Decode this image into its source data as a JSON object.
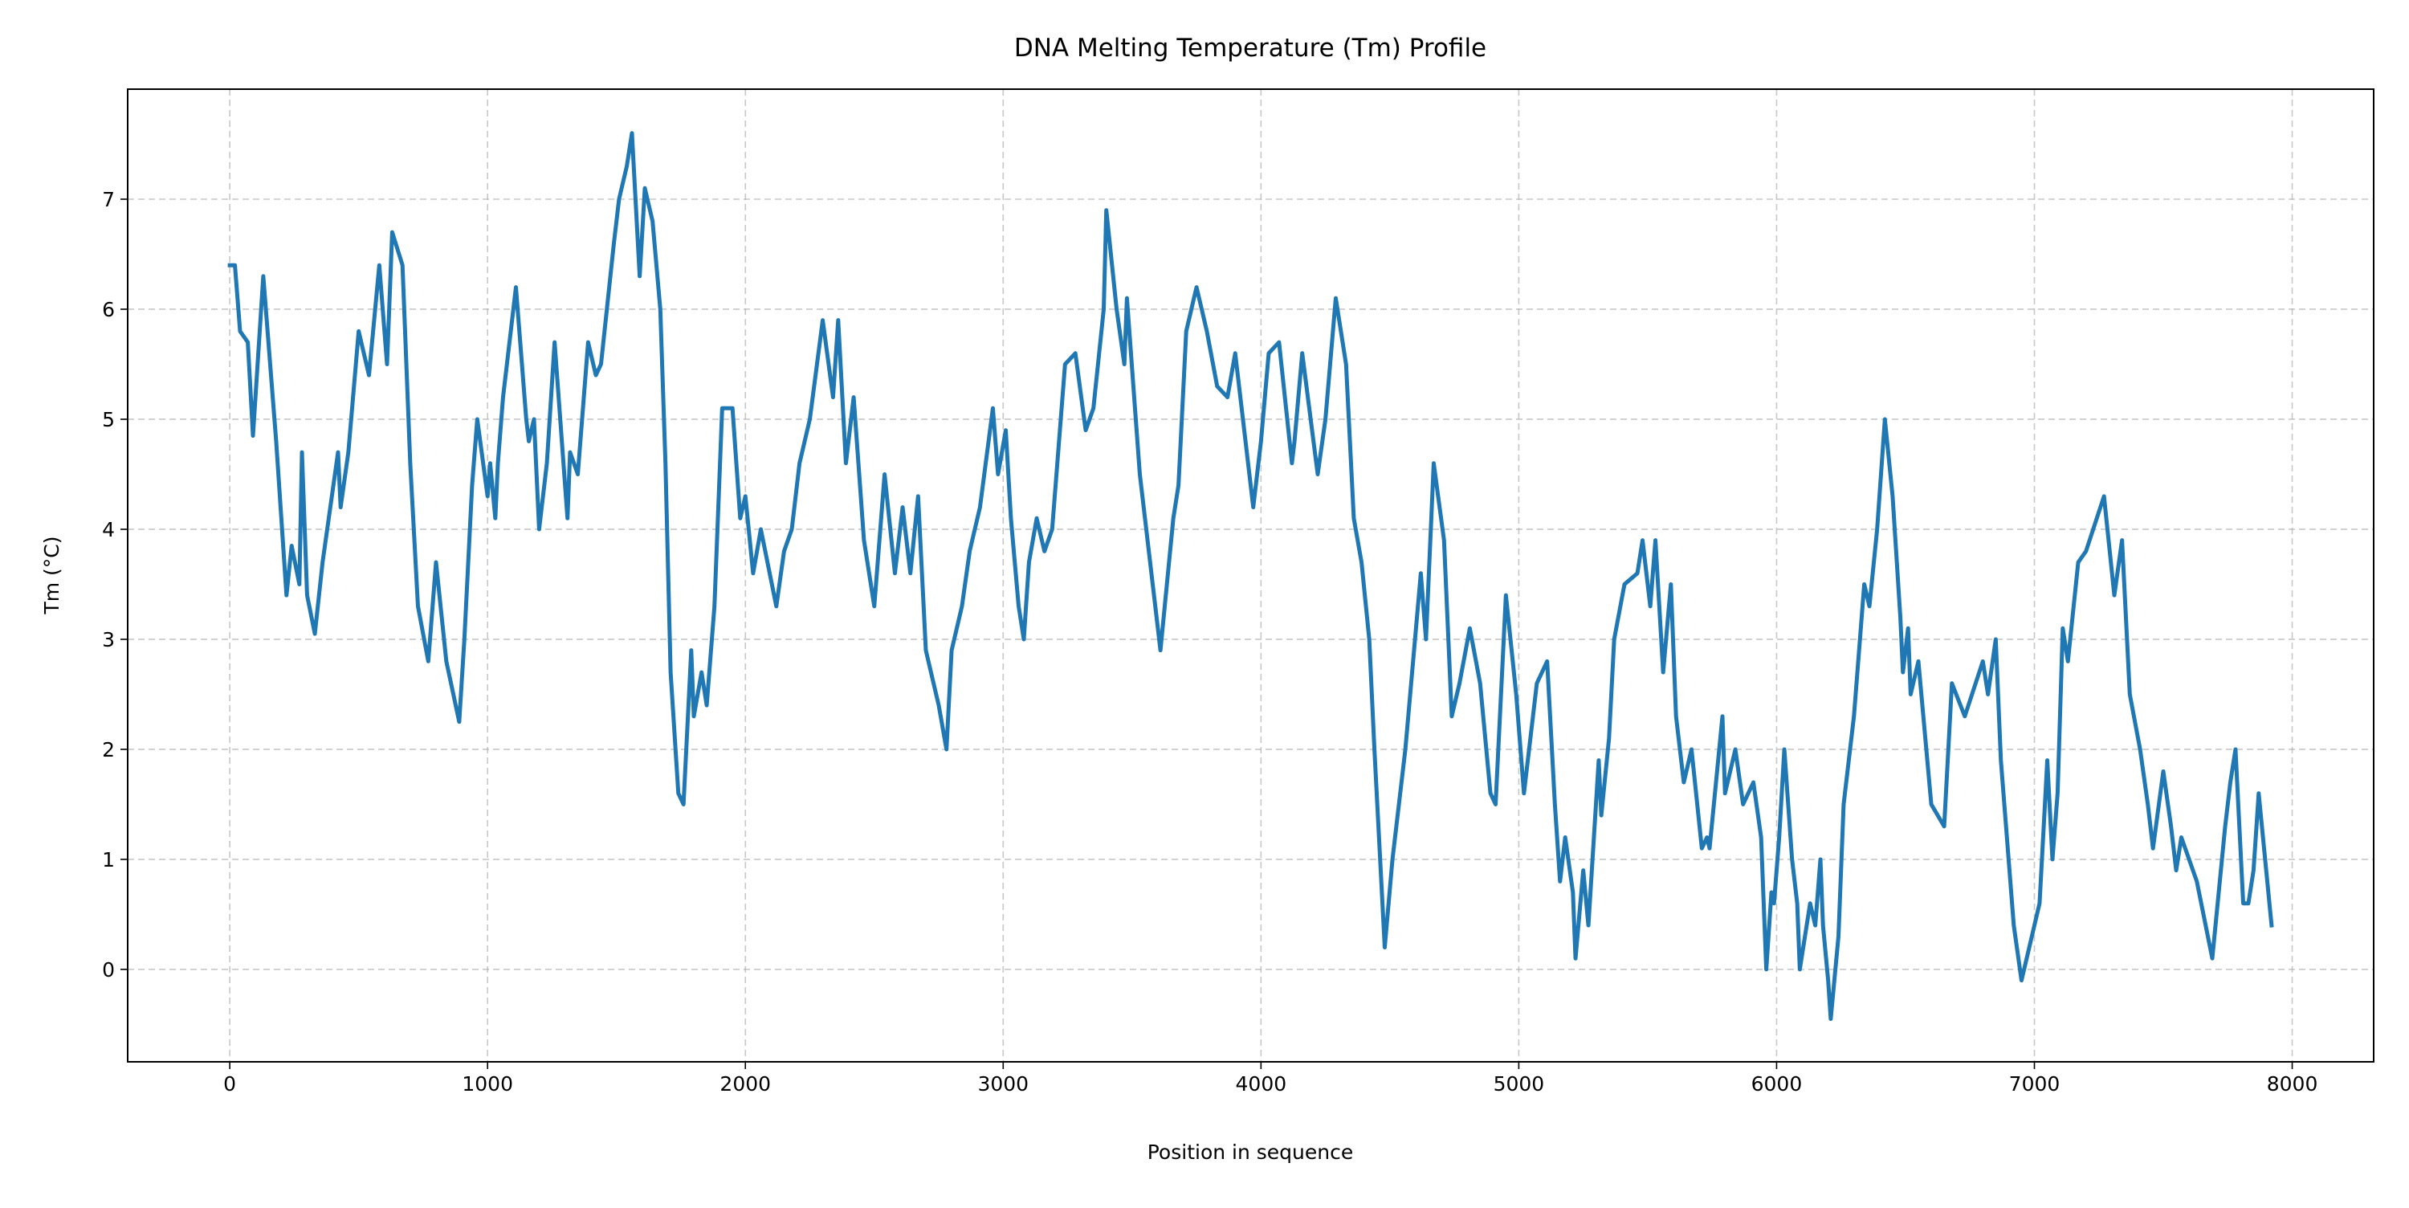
{
  "chart_data": {
    "type": "line",
    "title": "DNA Melting Temperature (Tm) Profile",
    "x_label": "Position in sequence",
    "y_label": "Tm (°C)",
    "color": "#1f77b4",
    "grid": true,
    "xlim": [
      -396,
      8316
    ],
    "ylim": [
      -0.84,
      8.0
    ],
    "xticks": [
      0,
      1000,
      2000,
      3000,
      4000,
      5000,
      6000,
      7000,
      8000
    ],
    "yticks": [
      0,
      1,
      2,
      3,
      4,
      5,
      6,
      7
    ],
    "x": [
      0,
      20,
      40,
      70,
      90,
      130,
      180,
      220,
      240,
      270,
      280,
      300,
      330,
      360,
      420,
      430,
      460,
      500,
      540,
      580,
      610,
      630,
      670,
      700,
      730,
      770,
      800,
      840,
      890,
      910,
      940,
      960,
      1000,
      1010,
      1030,
      1040,
      1060,
      1110,
      1150,
      1160,
      1180,
      1200,
      1230,
      1260,
      1310,
      1320,
      1350,
      1390,
      1420,
      1440,
      1490,
      1510,
      1540,
      1560,
      1590,
      1610,
      1640,
      1670,
      1690,
      1710,
      1740,
      1760,
      1790,
      1800,
      1830,
      1850,
      1880,
      1910,
      1950,
      1980,
      2000,
      2030,
      2060,
      2120,
      2150,
      2180,
      2210,
      2250,
      2300,
      2340,
      2360,
      2390,
      2420,
      2460,
      2500,
      2540,
      2580,
      2610,
      2640,
      2670,
      2700,
      2750,
      2780,
      2800,
      2840,
      2870,
      2910,
      2960,
      2980,
      3010,
      3030,
      3060,
      3080,
      3100,
      3130,
      3160,
      3190,
      3240,
      3280,
      3320,
      3350,
      3390,
      3400,
      3440,
      3470,
      3480,
      3530,
      3560,
      3590,
      3610,
      3660,
      3680,
      3710,
      3750,
      3790,
      3830,
      3870,
      3900,
      3970,
      4000,
      4030,
      4070,
      4120,
      4130,
      4160,
      4220,
      4250,
      4290,
      4330,
      4360,
      4390,
      4420,
      4440,
      4480,
      4510,
      4560,
      4620,
      4640,
      4670,
      4710,
      4740,
      4770,
      4810,
      4850,
      4890,
      4910,
      4950,
      4990,
      5020,
      5070,
      5110,
      5140,
      5160,
      5180,
      5210,
      5220,
      5250,
      5270,
      5310,
      5320,
      5350,
      5370,
      5410,
      5460,
      5480,
      5510,
      5530,
      5560,
      5590,
      5610,
      5640,
      5670,
      5710,
      5730,
      5740,
      5790,
      5800,
      5840,
      5870,
      5910,
      5940,
      5960,
      5980,
      5990,
      6010,
      6030,
      6060,
      6080,
      6090,
      6130,
      6150,
      6170,
      6180,
      6200,
      6210,
      6240,
      6260,
      6300,
      6340,
      6360,
      6390,
      6420,
      6450,
      6480,
      6490,
      6510,
      6520,
      6550,
      6600,
      6650,
      6680,
      6730,
      6800,
      6820,
      6850,
      6870,
      6900,
      6920,
      6950,
      6980,
      7020,
      7050,
      7070,
      7090,
      7110,
      7130,
      7170,
      7200,
      7270,
      7310,
      7340,
      7370,
      7410,
      7440,
      7460,
      7500,
      7530,
      7550,
      7570,
      7630,
      7690,
      7740,
      7760,
      7780,
      7810,
      7830,
      7850,
      7870,
      7920
    ],
    "values": [
      6.4,
      6.4,
      5.8,
      5.7,
      4.85,
      6.3,
      4.8,
      3.4,
      3.85,
      3.5,
      4.7,
      3.4,
      3.05,
      3.7,
      4.7,
      4.2,
      4.7,
      5.8,
      5.4,
      6.4,
      5.5,
      6.7,
      6.4,
      4.6,
      3.3,
      2.8,
      3.7,
      2.8,
      2.25,
      3.0,
      4.4,
      5.0,
      4.3,
      4.6,
      4.1,
      4.6,
      5.2,
      6.2,
      5.0,
      4.8,
      5.0,
      4.0,
      4.6,
      5.7,
      4.1,
      4.7,
      4.5,
      5.7,
      5.4,
      5.5,
      6.6,
      7.0,
      7.3,
      7.6,
      6.3,
      7.1,
      6.8,
      6.0,
      4.6,
      2.7,
      1.6,
      1.5,
      2.9,
      2.3,
      2.7,
      2.4,
      3.3,
      5.1,
      5.1,
      4.1,
      4.3,
      3.6,
      4.0,
      3.3,
      3.8,
      4.0,
      4.6,
      5.0,
      5.9,
      5.2,
      5.9,
      4.6,
      5.2,
      3.9,
      3.3,
      4.5,
      3.6,
      4.2,
      3.6,
      4.3,
      2.9,
      2.4,
      2.0,
      2.9,
      3.3,
      3.8,
      4.2,
      5.1,
      4.5,
      4.9,
      4.1,
      3.3,
      3.0,
      3.7,
      4.1,
      3.8,
      4.0,
      5.5,
      5.6,
      4.9,
      5.1,
      6.0,
      6.9,
      6.0,
      5.5,
      6.1,
      4.5,
      3.9,
      3.3,
      2.9,
      4.1,
      4.4,
      5.8,
      6.2,
      5.8,
      5.3,
      5.2,
      5.6,
      4.2,
      4.8,
      5.6,
      5.7,
      4.6,
      4.8,
      5.6,
      4.5,
      5.0,
      6.1,
      5.5,
      4.1,
      3.7,
      3.0,
      2.0,
      0.2,
      1.0,
      2.0,
      3.6,
      3.0,
      4.6,
      3.9,
      2.3,
      2.6,
      3.1,
      2.6,
      1.6,
      1.5,
      3.4,
      2.5,
      1.6,
      2.6,
      2.8,
      1.5,
      0.8,
      1.2,
      0.7,
      0.1,
      0.9,
      0.4,
      1.9,
      1.4,
      2.1,
      3.0,
      3.5,
      3.6,
      3.9,
      3.3,
      3.9,
      2.7,
      3.5,
      2.3,
      1.7,
      2.0,
      1.1,
      1.2,
      1.1,
      2.3,
      1.6,
      2.0,
      1.5,
      1.7,
      1.2,
      0.0,
      0.7,
      0.6,
      1.2,
      2.0,
      1.0,
      0.6,
      0.0,
      0.6,
      0.4,
      1.0,
      0.4,
      -0.1,
      -0.45,
      0.3,
      1.5,
      2.3,
      3.5,
      3.3,
      4.0,
      5.0,
      4.3,
      3.2,
      2.7,
      3.1,
      2.5,
      2.8,
      1.5,
      1.3,
      2.6,
      2.3,
      2.8,
      2.5,
      3.0,
      1.9,
      1.0,
      0.4,
      -0.1,
      0.2,
      0.6,
      1.9,
      1.0,
      1.6,
      3.1,
      2.8,
      3.7,
      3.8,
      4.3,
      3.4,
      3.9,
      2.5,
      2.0,
      1.5,
      1.1,
      1.8,
      1.3,
      0.9,
      1.2,
      0.8,
      0.1,
      1.3,
      1.7,
      2.0,
      0.6,
      0.6,
      0.9,
      1.6,
      0.4
    ]
  }
}
